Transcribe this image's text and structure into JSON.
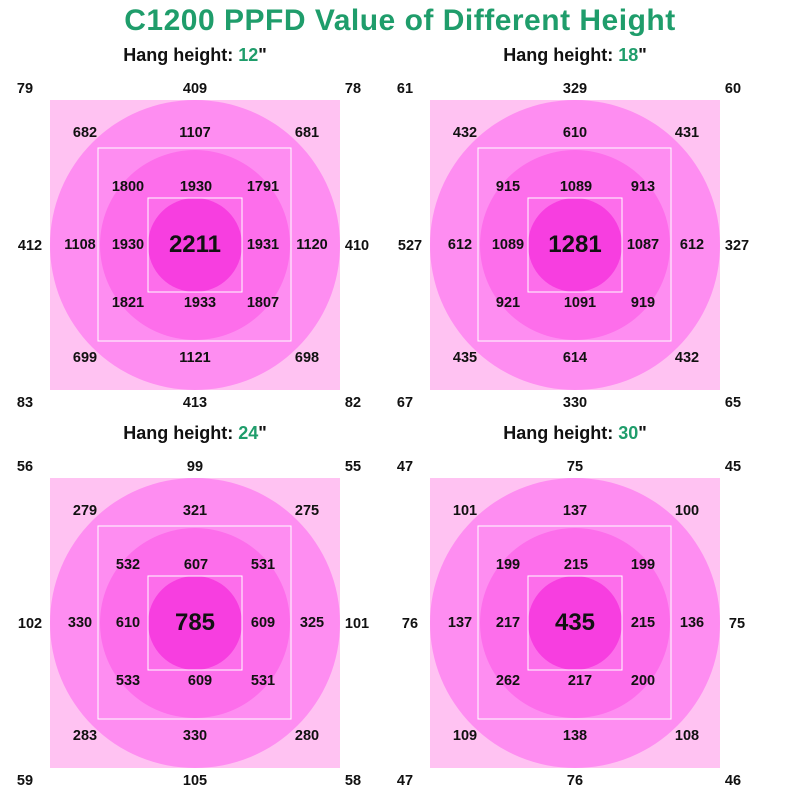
{
  "title": "C1200 PPFD Value of Different Height",
  "heading_prefix": "Hang height: ",
  "heading_suffix": "\"",
  "colors": {
    "title": "#1f9d6b",
    "square_bg": "#ffc2f2",
    "outer_circle": "#fe8df1",
    "middle_circle": "#fd6eeb",
    "center_circle": "#f73ee0",
    "grid_lines": "#ffffff"
  },
  "panels": [
    {
      "height": "12",
      "corners": [
        "79",
        "78",
        "83",
        "82"
      ],
      "top": "409",
      "bottom": "413",
      "left": "412",
      "right": "410",
      "ring2": [
        "682",
        "1107",
        "681",
        "1108",
        "1120",
        "699",
        "1121",
        "698"
      ],
      "ring1": [
        "1800",
        "1930",
        "1791",
        "1930",
        "1931",
        "1821",
        "1933",
        "1807"
      ],
      "center": "2211"
    },
    {
      "height": "18",
      "corners": [
        "61",
        "60",
        "67",
        "65"
      ],
      "top": "329",
      "bottom": "330",
      "left": "527",
      "right": "327",
      "ring2": [
        "432",
        "610",
        "431",
        "612",
        "612",
        "435",
        "614",
        "432"
      ],
      "ring1": [
        "915",
        "1089",
        "913",
        "1089",
        "1087",
        "921",
        "1091",
        "919"
      ],
      "center": "1281"
    },
    {
      "height": "24",
      "corners": [
        "56",
        "55",
        "59",
        "58"
      ],
      "top": "99",
      "bottom": "105",
      "left": "102",
      "right": "101",
      "ring2": [
        "279",
        "321",
        "275",
        "330",
        "325",
        "283",
        "330",
        "280"
      ],
      "ring1": [
        "532",
        "607",
        "531",
        "610",
        "609",
        "533",
        "609",
        "531"
      ],
      "center": "785"
    },
    {
      "height": "30",
      "corners": [
        "47",
        "45",
        "47",
        "46"
      ],
      "top": "75",
      "bottom": "76",
      "left": "76",
      "right": "75",
      "ring2": [
        "101",
        "137",
        "100",
        "137",
        "136",
        "109",
        "138",
        "108"
      ],
      "ring1": [
        "199",
        "215",
        "199",
        "217",
        "215",
        "262",
        "217",
        "200"
      ],
      "center": "435"
    }
  ]
}
